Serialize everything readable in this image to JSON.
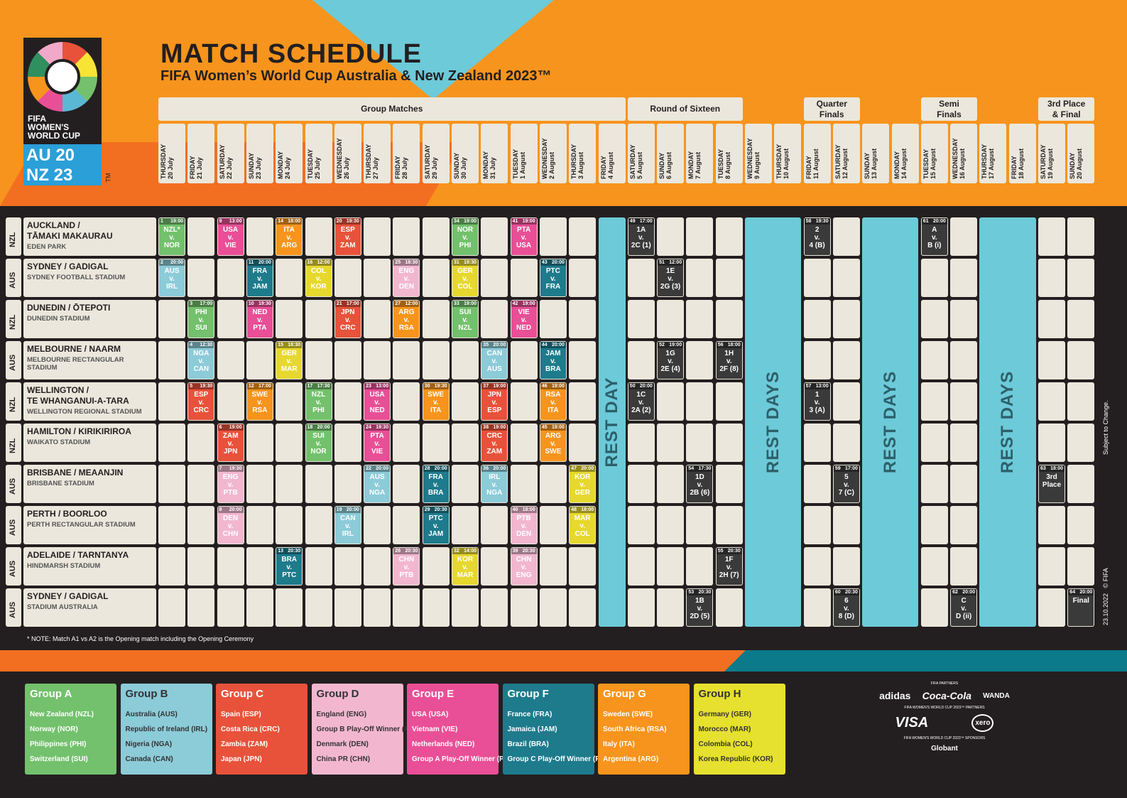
{
  "title": "MATCH SCHEDULE",
  "subtitle": "FIFA Women’s World Cup Australia & New Zealand 2023™",
  "logo": {
    "line1": "FIFA",
    "line2": "WOMEN'S",
    "line3": "WORLD CUP",
    "au": "AU 20",
    "nz": "NZ 23",
    "tm": "TM"
  },
  "phases": [
    {
      "label": "Group Matches"
    },
    {
      "label": "Round of Sixteen"
    },
    {
      "label": "Quarter\nFinals"
    },
    {
      "label": "Semi\nFinals"
    },
    {
      "label": "3rd Place\n& Final"
    }
  ],
  "days": [
    "THURSDAY\n20 July",
    "FRIDAY\n21 July",
    "SATURDAY\n22 July",
    "SUNDAY\n23 July",
    "MONDAY\n24 July",
    "TUESDAY\n25 July",
    "WEDNESDAY\n26 July",
    "THURSDAY\n27 July",
    "FRIDAY\n28 July",
    "SATURDAY\n29 July",
    "SUNDAY\n30 July",
    "MONDAY\n31 July",
    "TUESDAY\n1 August",
    "WEDNESDAY\n2 August",
    "THURSDAY\n3 August",
    "FRIDAY\n4 August",
    "SATURDAY\n5 August",
    "SUNDAY\n6 August",
    "MONDAY\n7 August",
    "TUESDAY\n8 August",
    "WEDNESDAY\n9 August",
    "THURSDAY\n10 August",
    "FRIDAY\n11 August",
    "SATURDAY\n12 August",
    "SUNDAY\n13 August",
    "MONDAY\n14 August",
    "TUESDAY\n15 August",
    "WEDNESDAY\n16 August",
    "THURSDAY\n17 August",
    "FRIDAY\n18 August",
    "SATURDAY\n19 August",
    "SUNDAY\n20 August"
  ],
  "venues": [
    {
      "country": "NZL",
      "city": "AUCKLAND /\nTĀMAKI MAKAURAU",
      "stadium": "EDEN PARK"
    },
    {
      "country": "AUS",
      "city": "SYDNEY / GADIGAL",
      "stadium": "SYDNEY FOOTBALL STADIUM"
    },
    {
      "country": "NZL",
      "city": "DUNEDIN / ŌTEPOTI",
      "stadium": "DUNEDIN STADIUM"
    },
    {
      "country": "AUS",
      "city": "MELBOURNE / NAARM",
      "stadium": "MELBOURNE RECTANGULAR STADIUM"
    },
    {
      "country": "NZL",
      "city": "WELLINGTON /\nTE WHANGANUI-A-TARA",
      "stadium": "WELLINGTON REGIONAL STADIUM"
    },
    {
      "country": "NZL",
      "city": "HAMILTON / KIRIKIRIROA",
      "stadium": "WAIKATO STADIUM"
    },
    {
      "country": "AUS",
      "city": "BRISBANE / MEAANJIN",
      "stadium": "BRISBANE STADIUM"
    },
    {
      "country": "AUS",
      "city": "PERTH / BOORLOO",
      "stadium": "PERTH RECTANGULAR STADIUM"
    },
    {
      "country": "AUS",
      "city": "ADELAIDE / TARNTANYA",
      "stadium": "HINDMARSH STADIUM"
    },
    {
      "country": "AUS",
      "city": "SYDNEY / GADIGAL",
      "stadium": "STADIUM AUSTRALIA"
    }
  ],
  "rest": [
    "REST DAY",
    "REST DAYS",
    "REST DAYS",
    "REST DAYS"
  ],
  "matches": [
    {
      "r": 0,
      "d": 0,
      "n": "1",
      "t": "19:00",
      "txt": "NZL*\nv.\nNOR",
      "c": "#73c16c"
    },
    {
      "r": 0,
      "d": 2,
      "n": "9",
      "t": "13:00",
      "txt": "USA\nv.\nVIE",
      "c": "#e94f96"
    },
    {
      "r": 0,
      "d": 4,
      "n": "14",
      "t": "18:00",
      "txt": "ITA\nv.\nARG",
      "c": "#f7941d"
    },
    {
      "r": 0,
      "d": 6,
      "n": "20",
      "t": "19:30",
      "txt": "ESP\nv.\nZAM",
      "c": "#e8523b"
    },
    {
      "r": 0,
      "d": 10,
      "n": "34",
      "t": "19:00",
      "txt": "NOR\nv.\nPHI",
      "c": "#73c16c"
    },
    {
      "r": 0,
      "d": 12,
      "n": "41",
      "t": "19:00",
      "txt": "PTA\nv.\nUSA",
      "c": "#e94f96"
    },
    {
      "r": 0,
      "d": 16,
      "n": "49",
      "t": "17:00",
      "txt": "1A\nv.\n2C (1)",
      "c": "#3a3a3a"
    },
    {
      "r": 0,
      "d": 22,
      "n": "58",
      "t": "19:30",
      "txt": "2\nv.\n4 (B)",
      "c": "#3a3a3a"
    },
    {
      "r": 0,
      "d": 26,
      "n": "61",
      "t": "20:00",
      "txt": "A\nv.\nB (i)",
      "c": "#3a3a3a"
    },
    {
      "r": 1,
      "d": 0,
      "n": "2",
      "t": "20:00",
      "txt": "AUS\nv.\nIRL",
      "c": "#8ccbd8"
    },
    {
      "r": 1,
      "d": 3,
      "n": "11",
      "t": "20:00",
      "txt": "FRA\nv.\nJAM",
      "c": "#1e7b8c"
    },
    {
      "r": 1,
      "d": 5,
      "n": "16",
      "t": "12:00",
      "txt": "COL\nv.\nKOR",
      "c": "#e6d82e"
    },
    {
      "r": 1,
      "d": 8,
      "n": "25",
      "t": "18:30",
      "txt": "ENG\nv.\nDEN",
      "c": "#f2b7cf"
    },
    {
      "r": 1,
      "d": 10,
      "n": "31",
      "t": "19:30",
      "txt": "GER\nv.\nCOL",
      "c": "#e6d82e"
    },
    {
      "r": 1,
      "d": 13,
      "n": "43",
      "t": "20:00",
      "txt": "PTC\nv.\nFRA",
      "c": "#1e7b8c"
    },
    {
      "r": 1,
      "d": 17,
      "n": "51",
      "t": "12:00",
      "txt": "1E\nv.\n2G (3)",
      "c": "#3a3a3a"
    },
    {
      "r": 2,
      "d": 1,
      "n": "3",
      "t": "17:00",
      "txt": "PHI\nv.\nSUI",
      "c": "#73c16c"
    },
    {
      "r": 2,
      "d": 3,
      "n": "10",
      "t": "19:30",
      "txt": "NED\nv.\nPTA",
      "c": "#e94f96"
    },
    {
      "r": 2,
      "d": 6,
      "n": "21",
      "t": "17:00",
      "txt": "JPN\nv.\nCRC",
      "c": "#e8523b"
    },
    {
      "r": 2,
      "d": 8,
      "n": "27",
      "t": "12:00",
      "txt": "ARG\nv.\nRSA",
      "c": "#f7941d"
    },
    {
      "r": 2,
      "d": 10,
      "n": "33",
      "t": "19:00",
      "txt": "SUI\nv.\nNZL",
      "c": "#73c16c"
    },
    {
      "r": 2,
      "d": 12,
      "n": "42",
      "t": "19:00",
      "txt": "VIE\nv.\nNED",
      "c": "#e94f96"
    },
    {
      "r": 3,
      "d": 1,
      "n": "4",
      "t": "12:30",
      "txt": "NGA\nv.\nCAN",
      "c": "#8ccbd8"
    },
    {
      "r": 3,
      "d": 4,
      "n": "15",
      "t": "18:30",
      "txt": "GER\nv.\nMAR",
      "c": "#e6d82e"
    },
    {
      "r": 3,
      "d": 11,
      "n": "35",
      "t": "20:00",
      "txt": "CAN\nv.\nAUS",
      "c": "#8ccbd8"
    },
    {
      "r": 3,
      "d": 13,
      "n": "44",
      "t": "20:00",
      "txt": "JAM\nv.\nBRA",
      "c": "#1e7b8c"
    },
    {
      "r": 3,
      "d": 17,
      "n": "52",
      "t": "19:00",
      "txt": "1G\nv.\n2E (4)",
      "c": "#3a3a3a"
    },
    {
      "r": 3,
      "d": 19,
      "n": "56",
      "t": "18:00",
      "txt": "1H\nv.\n2F (8)",
      "c": "#3a3a3a"
    },
    {
      "r": 4,
      "d": 1,
      "n": "5",
      "t": "19:30",
      "txt": "ESP\nv.\nCRC",
      "c": "#e8523b"
    },
    {
      "r": 4,
      "d": 3,
      "n": "12",
      "t": "17:00",
      "txt": "SWE\nv.\nRSA",
      "c": "#f7941d"
    },
    {
      "r": 4,
      "d": 5,
      "n": "17",
      "t": "17:30",
      "txt": "NZL\nv.\nPHI",
      "c": "#73c16c"
    },
    {
      "r": 4,
      "d": 7,
      "n": "23",
      "t": "13:00",
      "txt": "USA\nv.\nNED",
      "c": "#e94f96"
    },
    {
      "r": 4,
      "d": 9,
      "n": "30",
      "t": "19:30",
      "txt": "SWE\nv.\nITA",
      "c": "#f7941d"
    },
    {
      "r": 4,
      "d": 11,
      "n": "37",
      "t": "19:00",
      "txt": "JPN\nv.\nESP",
      "c": "#e8523b"
    },
    {
      "r": 4,
      "d": 13,
      "n": "46",
      "t": "19:00",
      "txt": "RSA\nv.\nITA",
      "c": "#f7941d"
    },
    {
      "r": 4,
      "d": 16,
      "n": "50",
      "t": "20:00",
      "txt": "1C\nv.\n2A (2)",
      "c": "#3a3a3a"
    },
    {
      "r": 4,
      "d": 22,
      "n": "57",
      "t": "13:00",
      "txt": "1\nv.\n3 (A)",
      "c": "#3a3a3a"
    },
    {
      "r": 5,
      "d": 2,
      "n": "6",
      "t": "19:00",
      "txt": "ZAM\nv.\nJPN",
      "c": "#e8523b"
    },
    {
      "r": 5,
      "d": 5,
      "n": "18",
      "t": "20:00",
      "txt": "SUI\nv.\nNOR",
      "c": "#73c16c"
    },
    {
      "r": 5,
      "d": 7,
      "n": "24",
      "t": "19:30",
      "txt": "PTA\nv.\nVIE",
      "c": "#e94f96"
    },
    {
      "r": 5,
      "d": 11,
      "n": "38",
      "t": "19:00",
      "txt": "CRC\nv.\nZAM",
      "c": "#e8523b"
    },
    {
      "r": 5,
      "d": 13,
      "n": "45",
      "t": "19:00",
      "txt": "ARG\nv.\nSWE",
      "c": "#f7941d"
    },
    {
      "r": 6,
      "d": 2,
      "n": "7",
      "t": "19:30",
      "txt": "ENG\nv.\nPTB",
      "c": "#f2b7cf"
    },
    {
      "r": 6,
      "d": 7,
      "n": "22",
      "t": "20:00",
      "txt": "AUS\nv.\nNGA",
      "c": "#8ccbd8"
    },
    {
      "r": 6,
      "d": 9,
      "n": "28",
      "t": "20:00",
      "txt": "FRA\nv.\nBRA",
      "c": "#1e7b8c"
    },
    {
      "r": 6,
      "d": 11,
      "n": "36",
      "t": "20:00",
      "txt": "IRL\nv.\nNGA",
      "c": "#8ccbd8"
    },
    {
      "r": 6,
      "d": 14,
      "n": "47",
      "t": "20:00",
      "txt": "KOR\nv.\nGER",
      "c": "#e6d82e"
    },
    {
      "r": 6,
      "d": 18,
      "n": "54",
      "t": "17:30",
      "txt": "1D\nv.\n2B (6)",
      "c": "#3a3a3a"
    },
    {
      "r": 6,
      "d": 23,
      "n": "59",
      "t": "17:00",
      "txt": "5\nv.\n7 (C)",
      "c": "#3a3a3a"
    },
    {
      "r": 6,
      "d": 30,
      "n": "63",
      "t": "18:00",
      "txt": "3rd\nPlace",
      "c": "#3a3a3a"
    },
    {
      "r": 7,
      "d": 2,
      "n": "8",
      "t": "20:00",
      "txt": "DEN\nv.\nCHN",
      "c": "#f2b7cf"
    },
    {
      "r": 7,
      "d": 6,
      "n": "19",
      "t": "20:00",
      "txt": "CAN\nv.\nIRL",
      "c": "#8ccbd8"
    },
    {
      "r": 7,
      "d": 9,
      "n": "29",
      "t": "20:30",
      "txt": "PTC\nv.\nJAM",
      "c": "#1e7b8c"
    },
    {
      "r": 7,
      "d": 12,
      "n": "40",
      "t": "18:00",
      "txt": "PTB\nv.\nDEN",
      "c": "#f2b7cf"
    },
    {
      "r": 7,
      "d": 14,
      "n": "48",
      "t": "18:00",
      "txt": "MAR\nv.\nCOL",
      "c": "#e6d82e"
    },
    {
      "r": 8,
      "d": 4,
      "n": "13",
      "t": "20:30",
      "txt": "BRA\nv.\nPTC",
      "c": "#1e7b8c"
    },
    {
      "r": 8,
      "d": 8,
      "n": "26",
      "t": "20:30",
      "txt": "CHN\nv.\nPTB",
      "c": "#f2b7cf"
    },
    {
      "r": 8,
      "d": 10,
      "n": "32",
      "t": "14:00",
      "txt": "KOR\nv.\nMAR",
      "c": "#e6d82e"
    },
    {
      "r": 8,
      "d": 12,
      "n": "39",
      "t": "20:30",
      "txt": "CHN\nv.\nENG",
      "c": "#f2b7cf"
    },
    {
      "r": 8,
      "d": 19,
      "n": "55",
      "t": "20:30",
      "txt": "1F\nv.\n2H (7)",
      "c": "#3a3a3a"
    },
    {
      "r": 9,
      "d": 18,
      "n": "53",
      "t": "20:30",
      "txt": "1B\nv.\n2D (5)",
      "c": "#3a3a3a"
    },
    {
      "r": 9,
      "d": 23,
      "n": "60",
      "t": "20:30",
      "txt": "6\nv.\n8 (D)",
      "c": "#3a3a3a"
    },
    {
      "r": 9,
      "d": 27,
      "n": "62",
      "t": "20:00",
      "txt": "C\nv.\nD (ii)",
      "c": "#3a3a3a"
    },
    {
      "r": 9,
      "d": 31,
      "n": "64",
      "t": "20:00",
      "txt": "Final",
      "c": "#3a3a3a"
    }
  ],
  "note": "* NOTE: Match A1 vs A2 is the Opening match including the Opening Ceremony",
  "side": {
    "subject": "Subject to Change.",
    "date": "23.10.2022",
    "copy": "© FIFA"
  },
  "groups": [
    {
      "name": "Group A",
      "color": "#73c16c",
      "teams": [
        "New Zealand (NZL)",
        "Norway (NOR)",
        "Philippines (PHI)",
        "Switzerland (SUI)"
      ]
    },
    {
      "name": "Group B",
      "color": "#8ccbd8",
      "teams": [
        "Australia (AUS)",
        "Republic of Ireland (IRL)",
        "Nigeria (NGA)",
        "Canada (CAN)"
      ]
    },
    {
      "name": "Group C",
      "color": "#e8523b",
      "teams": [
        "Spain (ESP)",
        "Costa Rica (CRC)",
        "Zambia (ZAM)",
        "Japan (JPN)"
      ]
    },
    {
      "name": "Group D",
      "color": "#f2b7cf",
      "teams": [
        "England (ENG)",
        "Group B Play-Off Winner (PTB)",
        "Denmark (DEN)",
        "China PR (CHN)"
      ]
    },
    {
      "name": "Group E",
      "color": "#e94f96",
      "teams": [
        "USA (USA)",
        "Vietnam (VIE)",
        "Netherlands (NED)",
        "Group A Play-Off Winner (PTA)"
      ]
    },
    {
      "name": "Group F",
      "color": "#1e7b8c",
      "teams": [
        "France (FRA)",
        "Jamaica (JAM)",
        "Brazil (BRA)",
        "Group C Play-Off Winner (PTC)"
      ]
    },
    {
      "name": "Group G",
      "color": "#f7941d",
      "teams": [
        "Sweden (SWE)",
        "South Africa (RSA)",
        "Italy (ITA)",
        "Argentina (ARG)"
      ]
    },
    {
      "name": "Group H",
      "color": "#e6e02e",
      "teams": [
        "Germany (GER)",
        "Morocco (MAR)",
        "Colombia (COL)",
        "Korea Republic (KOR)"
      ]
    }
  ],
  "sponsors": {
    "partners_label": "FIFA PARTNERS",
    "partners": [
      "adidas",
      "Coca-Cola",
      "WANDA"
    ],
    "wc_partners_label": "FIFA WOMEN'S WORLD CUP 2023™ PARTNERS",
    "wc_partners": [
      "VISA",
      "xero"
    ],
    "sponsors_label": "FIFA WOMEN'S WORLD CUP 2023™ SPONSORS",
    "sponsors": [
      "Globant"
    ]
  }
}
